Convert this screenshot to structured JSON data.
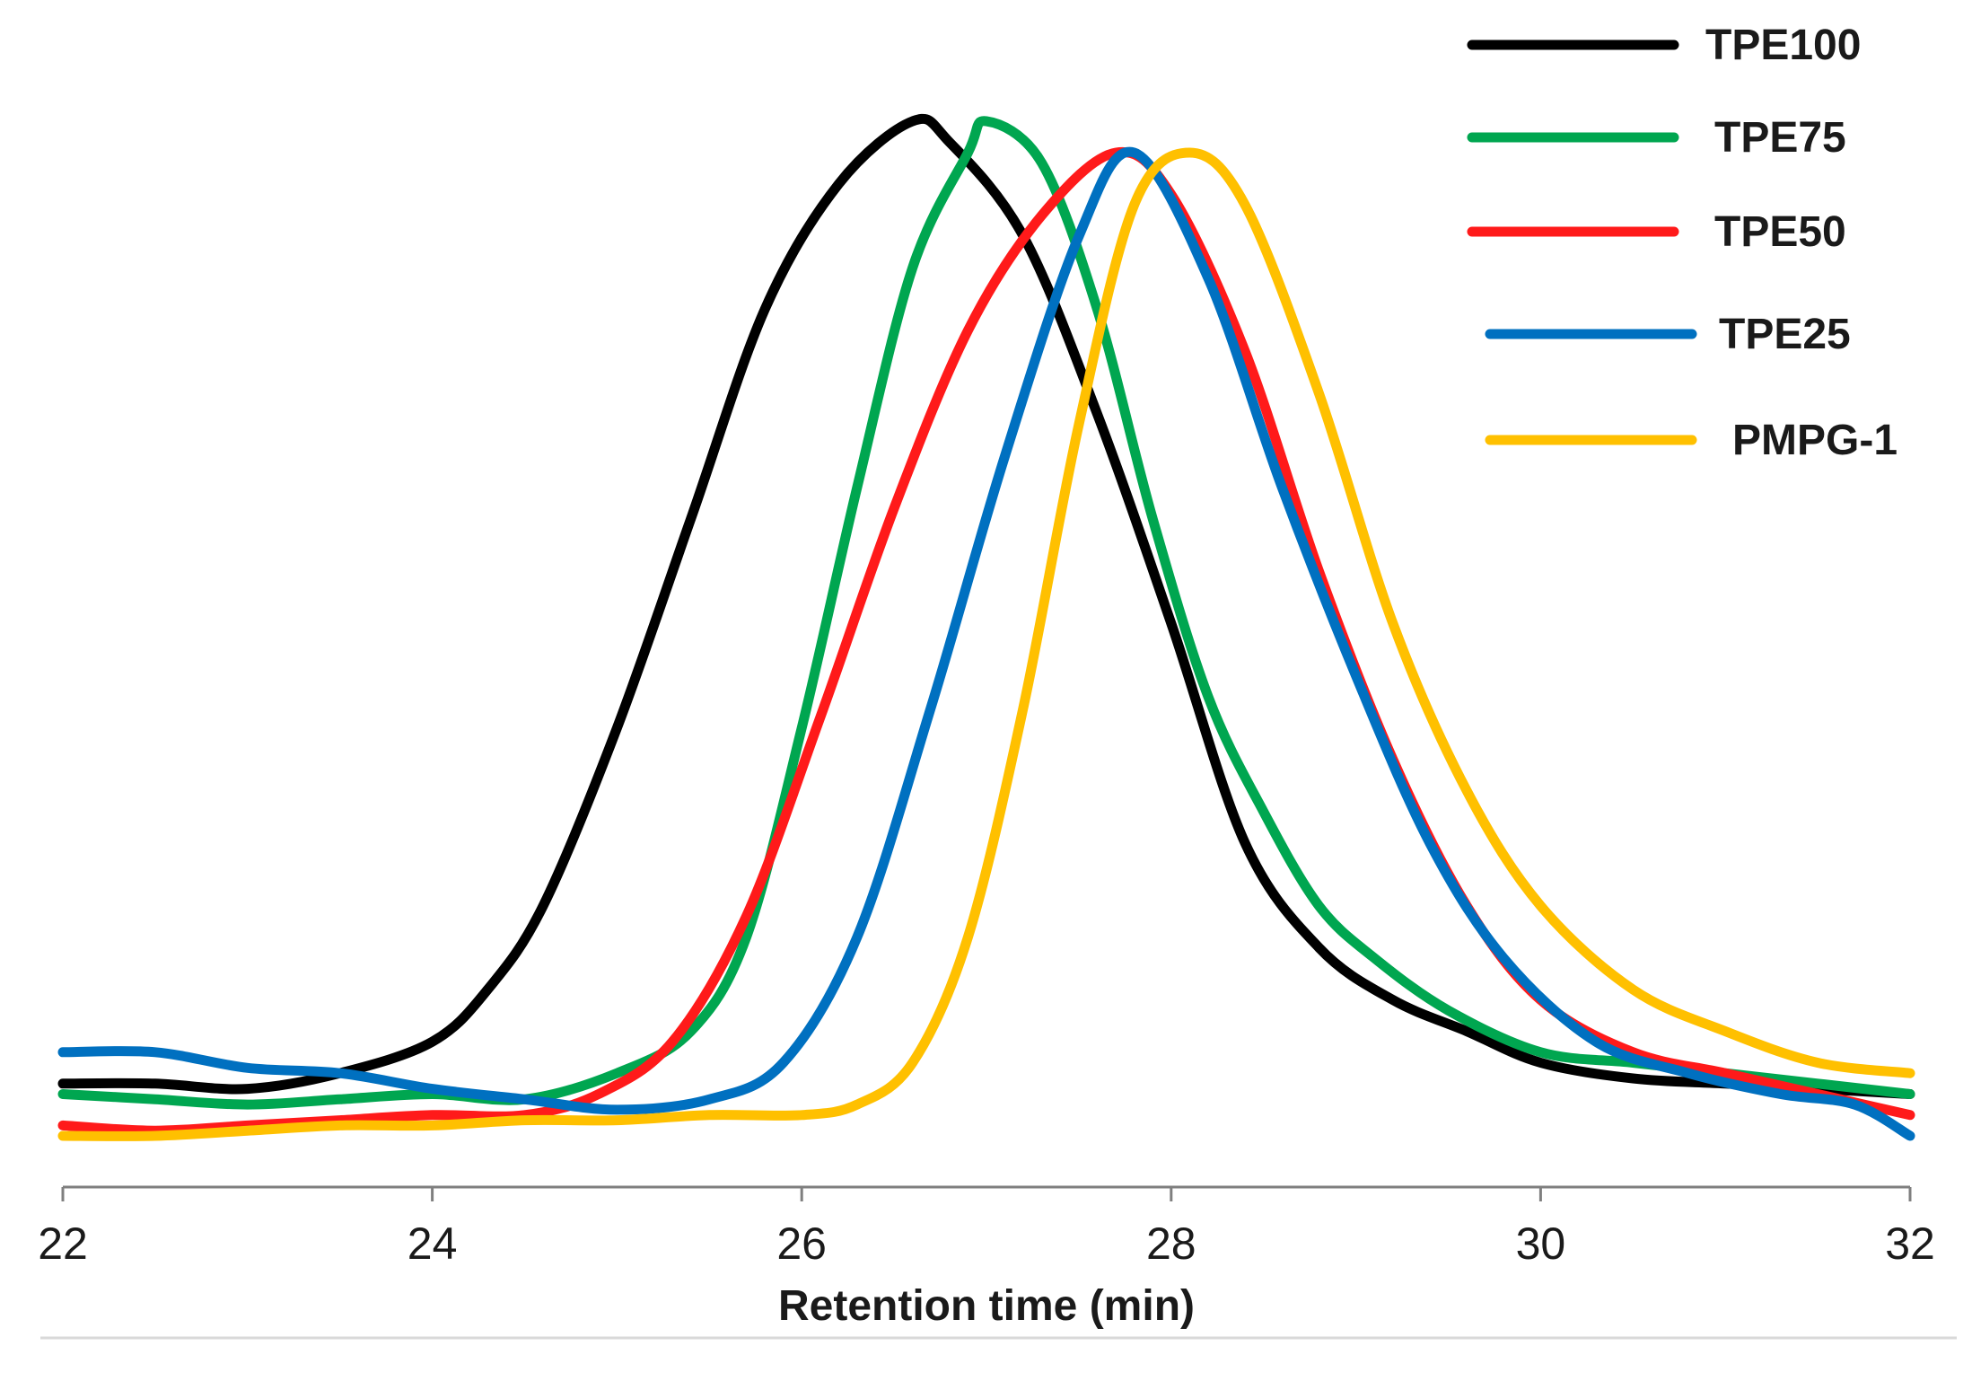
{
  "chart_data": {
    "type": "line",
    "title": "",
    "xlabel": "Retention time (min)",
    "ylabel": "",
    "xlim": [
      22,
      32
    ],
    "ylim": [
      0,
      1.0
    ],
    "xticks": [
      "22",
      "24",
      "26",
      "28",
      "30",
      "32"
    ],
    "grid": false,
    "legend_position": "top-right",
    "series": [
      {
        "name": "TPE100",
        "color": "#000000",
        "points": [
          [
            22.0,
            0.08
          ],
          [
            22.5,
            0.08
          ],
          [
            23.0,
            0.075
          ],
          [
            23.5,
            0.09
          ],
          [
            24.0,
            0.12
          ],
          [
            24.3,
            0.17
          ],
          [
            24.6,
            0.25
          ],
          [
            25.0,
            0.42
          ],
          [
            25.4,
            0.62
          ],
          [
            25.8,
            0.82
          ],
          [
            26.2,
            0.94
          ],
          [
            26.6,
            1.0
          ],
          [
            26.8,
            0.98
          ],
          [
            27.2,
            0.89
          ],
          [
            27.6,
            0.72
          ],
          [
            28.0,
            0.52
          ],
          [
            28.4,
            0.31
          ],
          [
            28.8,
            0.21
          ],
          [
            29.2,
            0.16
          ],
          [
            29.6,
            0.13
          ],
          [
            30.0,
            0.1
          ],
          [
            30.5,
            0.085
          ],
          [
            31.0,
            0.08
          ],
          [
            31.5,
            0.075
          ],
          [
            32.0,
            0.07
          ]
        ]
      },
      {
        "name": "TPE75",
        "color": "#00a650",
        "points": [
          [
            22.0,
            0.07
          ],
          [
            22.5,
            0.065
          ],
          [
            23.0,
            0.06
          ],
          [
            23.5,
            0.065
          ],
          [
            24.0,
            0.07
          ],
          [
            24.5,
            0.065
          ],
          [
            25.0,
            0.09
          ],
          [
            25.4,
            0.13
          ],
          [
            25.7,
            0.22
          ],
          [
            26.0,
            0.42
          ],
          [
            26.3,
            0.65
          ],
          [
            26.6,
            0.86
          ],
          [
            26.9,
            0.97
          ],
          [
            27.0,
            1.0
          ],
          [
            27.3,
            0.96
          ],
          [
            27.6,
            0.82
          ],
          [
            27.9,
            0.62
          ],
          [
            28.2,
            0.45
          ],
          [
            28.5,
            0.34
          ],
          [
            28.8,
            0.25
          ],
          [
            29.1,
            0.2
          ],
          [
            29.5,
            0.15
          ],
          [
            30.0,
            0.11
          ],
          [
            30.5,
            0.1
          ],
          [
            31.0,
            0.09
          ],
          [
            31.5,
            0.08
          ],
          [
            32.0,
            0.07
          ]
        ]
      },
      {
        "name": "TPE50",
        "color": "#ff1a1a",
        "points": [
          [
            22.0,
            0.04
          ],
          [
            22.5,
            0.035
          ],
          [
            23.0,
            0.04
          ],
          [
            23.5,
            0.045
          ],
          [
            24.0,
            0.05
          ],
          [
            24.5,
            0.05
          ],
          [
            24.9,
            0.07
          ],
          [
            25.3,
            0.12
          ],
          [
            25.7,
            0.24
          ],
          [
            26.1,
            0.43
          ],
          [
            26.5,
            0.63
          ],
          [
            26.9,
            0.8
          ],
          [
            27.3,
            0.91
          ],
          [
            27.7,
            0.97
          ],
          [
            28.0,
            0.93
          ],
          [
            28.4,
            0.78
          ],
          [
            28.8,
            0.57
          ],
          [
            29.2,
            0.39
          ],
          [
            29.6,
            0.25
          ],
          [
            30.0,
            0.16
          ],
          [
            30.5,
            0.11
          ],
          [
            31.0,
            0.09
          ],
          [
            31.5,
            0.07
          ],
          [
            32.0,
            0.05
          ]
        ]
      },
      {
        "name": "TPE25",
        "color": "#0070c0",
        "points": [
          [
            22.0,
            0.11
          ],
          [
            22.5,
            0.11
          ],
          [
            23.0,
            0.095
          ],
          [
            23.5,
            0.09
          ],
          [
            24.0,
            0.075
          ],
          [
            24.5,
            0.065
          ],
          [
            25.0,
            0.055
          ],
          [
            25.5,
            0.065
          ],
          [
            25.9,
            0.1
          ],
          [
            26.3,
            0.22
          ],
          [
            26.7,
            0.44
          ],
          [
            27.1,
            0.68
          ],
          [
            27.5,
            0.89
          ],
          [
            27.8,
            0.97
          ],
          [
            28.2,
            0.85
          ],
          [
            28.6,
            0.65
          ],
          [
            29.0,
            0.47
          ],
          [
            29.4,
            0.31
          ],
          [
            29.8,
            0.2
          ],
          [
            30.3,
            0.12
          ],
          [
            30.8,
            0.09
          ],
          [
            31.3,
            0.07
          ],
          [
            31.7,
            0.06
          ],
          [
            32.0,
            0.03
          ]
        ]
      },
      {
        "name": "PMPG-1",
        "color": "#ffc000",
        "points": [
          [
            22.0,
            0.03
          ],
          [
            22.5,
            0.03
          ],
          [
            23.0,
            0.035
          ],
          [
            23.5,
            0.04
          ],
          [
            24.0,
            0.04
          ],
          [
            24.5,
            0.045
          ],
          [
            25.0,
            0.045
          ],
          [
            25.5,
            0.05
          ],
          [
            26.0,
            0.05
          ],
          [
            26.3,
            0.06
          ],
          [
            26.6,
            0.1
          ],
          [
            26.9,
            0.22
          ],
          [
            27.2,
            0.44
          ],
          [
            27.5,
            0.71
          ],
          [
            27.8,
            0.92
          ],
          [
            28.1,
            0.97
          ],
          [
            28.4,
            0.92
          ],
          [
            28.8,
            0.74
          ],
          [
            29.2,
            0.52
          ],
          [
            29.6,
            0.36
          ],
          [
            30.0,
            0.25
          ],
          [
            30.5,
            0.17
          ],
          [
            31.0,
            0.13
          ],
          [
            31.5,
            0.1
          ],
          [
            32.0,
            0.09
          ]
        ]
      }
    ]
  }
}
